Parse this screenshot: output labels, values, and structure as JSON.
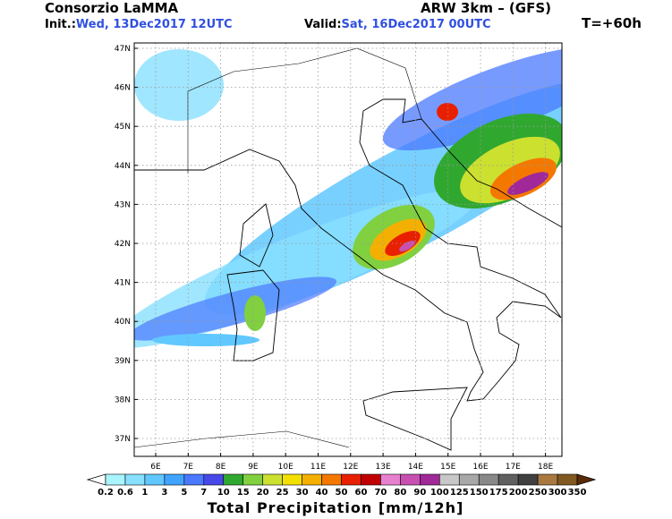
{
  "header": {
    "title": "Consorzio LaMMA",
    "model": "ARW 3km – (GFS)",
    "init_label": "Init.:",
    "init_value": "Wed, 13Dec2017 12UTC",
    "valid_label": "Valid:",
    "valid_value": "Sat, 16Dec2017 00UTC",
    "lead_time": "T=+60h"
  },
  "map": {
    "lat_labels": [
      "47N",
      "46N",
      "45N",
      "44N",
      "43N",
      "42N",
      "41N",
      "40N",
      "39N",
      "38N",
      "37N"
    ],
    "lon_labels": [
      "6E",
      "7E",
      "8E",
      "9E",
      "10E",
      "11E",
      "12E",
      "13E",
      "14E",
      "15E",
      "16E",
      "17E",
      "18E"
    ]
  },
  "colorbar": {
    "title": "Total Precipitation [mm/12h]",
    "labels": [
      "0.2",
      "0.6",
      "1",
      "3",
      "5",
      "7",
      "10",
      "15",
      "20",
      "25",
      "30",
      "40",
      "50",
      "60",
      "70",
      "80",
      "90",
      "100",
      "125",
      "150",
      "175",
      "200",
      "250",
      "300",
      "350"
    ],
    "under_color": "#ffffff",
    "over_color": "#5a2a08",
    "colors": [
      "#a8f4ff",
      "#88e0ff",
      "#60c8ff",
      "#40a4ff",
      "#4a78ff",
      "#4848e8",
      "#30a830",
      "#80d040",
      "#cce030",
      "#f4e000",
      "#f4b000",
      "#f47800",
      "#e82000",
      "#c00000",
      "#e880d0",
      "#c850b0",
      "#a02898",
      "#c8c8c8",
      "#a8a8a8",
      "#888888",
      "#606060",
      "#404040",
      "#a87840",
      "#805820"
    ]
  }
}
